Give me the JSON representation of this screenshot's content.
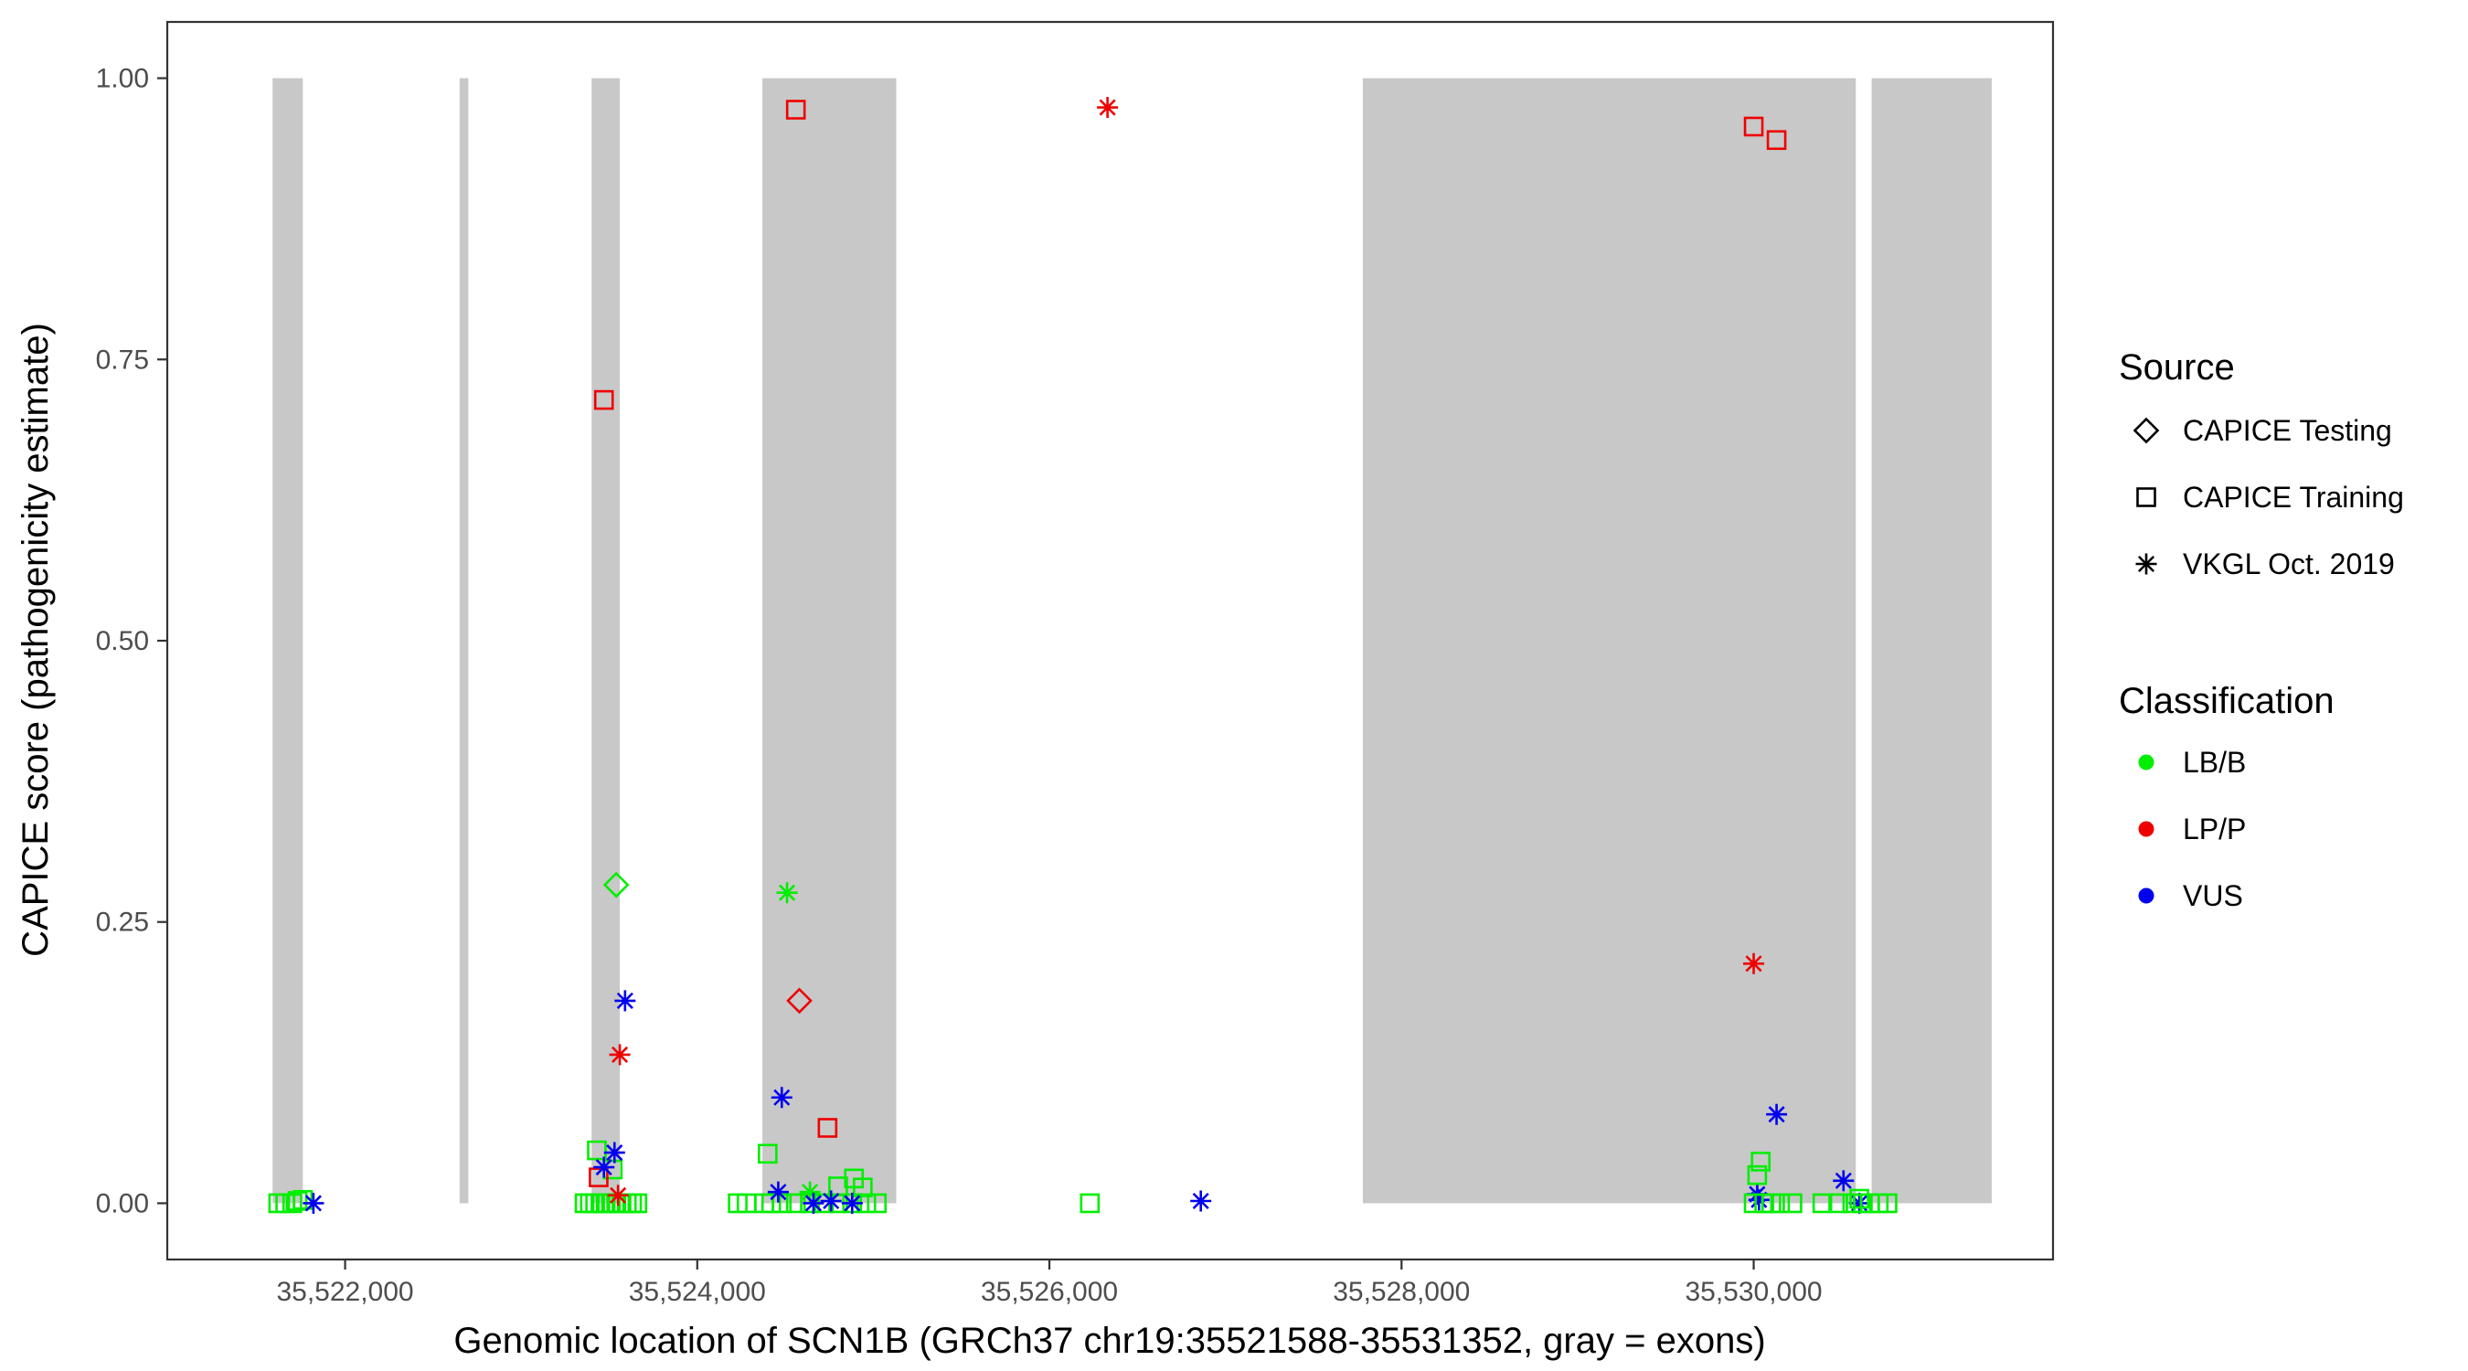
{
  "chart_data": {
    "type": "scatter",
    "xlabel": "Genomic location of SCN1B (GRCh37 chr19:35521588-35531352, gray = exons)",
    "ylabel": "CAPICE score (pathogenicity estimate)",
    "xlim": [
      35520990,
      35531700
    ],
    "ylim": [
      -0.05,
      1.05
    ],
    "x_ticks": [
      35522000,
      35524000,
      35526000,
      35528000,
      35530000
    ],
    "x_tick_labels": [
      "35,522,000",
      "35,524,000",
      "35,526,000",
      "35,528,000",
      "35,530,000"
    ],
    "y_ticks": [
      0,
      0.25,
      0.5,
      0.75,
      1.0
    ],
    "y_tick_labels": [
      "0.00",
      "0.25",
      "0.50",
      "0.75",
      "1.00"
    ],
    "grid": false,
    "exons": [
      [
        35521588,
        35521760
      ],
      [
        35522650,
        35522700
      ],
      [
        35523400,
        35523560
      ],
      [
        35524370,
        35525130
      ],
      [
        35527780,
        35530580
      ],
      [
        35530670,
        35531352
      ]
    ],
    "exon_color": "#c8c8c8",
    "legends": [
      {
        "title": "Source",
        "entries": [
          {
            "label": "CAPICE Testing",
            "shape": "diamond"
          },
          {
            "label": "CAPICE Training",
            "shape": "square"
          },
          {
            "label": "VKGL Oct. 2019",
            "shape": "asterisk"
          }
        ]
      },
      {
        "title": "Classification",
        "entries": [
          {
            "label": "LB/B",
            "color": "#00ee00"
          },
          {
            "label": "LP/P",
            "color": "#ee0000"
          },
          {
            "label": "VUS",
            "color": "#0000ee"
          }
        ]
      }
    ],
    "legend_position": "right",
    "colors": {
      "LB/B": "#00ee00",
      "LP/P": "#ee0000",
      "VUS": "#0000ee"
    },
    "points": [
      {
        "x": 35521620,
        "y": 0.0,
        "source": "CAPICE Training",
        "class": "LB/B"
      },
      {
        "x": 35521660,
        "y": 0.0,
        "source": "CAPICE Training",
        "class": "LB/B"
      },
      {
        "x": 35521700,
        "y": 0.0,
        "source": "CAPICE Training",
        "class": "LB/B"
      },
      {
        "x": 35521730,
        "y": 0.002,
        "source": "CAPICE Training",
        "class": "LB/B"
      },
      {
        "x": 35521760,
        "y": 0.003,
        "source": "CAPICE Training",
        "class": "LB/B"
      },
      {
        "x": 35521820,
        "y": 0.0,
        "source": "VKGL Oct. 2019",
        "class": "VUS"
      },
      {
        "x": 35523360,
        "y": 0.0,
        "source": "CAPICE Training",
        "class": "LB/B"
      },
      {
        "x": 35523390,
        "y": 0.0,
        "source": "CAPICE Training",
        "class": "LB/B"
      },
      {
        "x": 35523420,
        "y": 0.0,
        "source": "CAPICE Training",
        "class": "LB/B"
      },
      {
        "x": 35523450,
        "y": 0.0,
        "source": "CAPICE Training",
        "class": "LB/B"
      },
      {
        "x": 35523480,
        "y": 0.0,
        "source": "CAPICE Training",
        "class": "LB/B"
      },
      {
        "x": 35523510,
        "y": 0.0,
        "source": "CAPICE Training",
        "class": "LB/B"
      },
      {
        "x": 35523540,
        "y": 0.0,
        "source": "CAPICE Training",
        "class": "LB/B"
      },
      {
        "x": 35523570,
        "y": 0.0,
        "source": "CAPICE Training",
        "class": "LB/B"
      },
      {
        "x": 35523600,
        "y": 0.0,
        "source": "CAPICE Training",
        "class": "LB/B"
      },
      {
        "x": 35523630,
        "y": 0.0,
        "source": "CAPICE Training",
        "class": "LB/B"
      },
      {
        "x": 35523660,
        "y": 0.0,
        "source": "CAPICE Training",
        "class": "LB/B"
      },
      {
        "x": 35523430,
        "y": 0.047,
        "source": "CAPICE Training",
        "class": "LB/B"
      },
      {
        "x": 35523520,
        "y": 0.03,
        "source": "CAPICE Training",
        "class": "LB/B"
      },
      {
        "x": 35523470,
        "y": 0.714,
        "source": "CAPICE Training",
        "class": "LP/P"
      },
      {
        "x": 35523440,
        "y": 0.023,
        "source": "CAPICE Training",
        "class": "LP/P"
      },
      {
        "x": 35523540,
        "y": 0.283,
        "source": "CAPICE Testing",
        "class": "LB/B"
      },
      {
        "x": 35523590,
        "y": 0.18,
        "source": "VKGL Oct. 2019",
        "class": "VUS"
      },
      {
        "x": 35523560,
        "y": 0.132,
        "source": "VKGL Oct. 2019",
        "class": "LP/P"
      },
      {
        "x": 35523530,
        "y": 0.045,
        "source": "VKGL Oct. 2019",
        "class": "VUS"
      },
      {
        "x": 35523470,
        "y": 0.032,
        "source": "VKGL Oct. 2019",
        "class": "VUS"
      },
      {
        "x": 35523550,
        "y": 0.007,
        "source": "VKGL Oct. 2019",
        "class": "LP/P"
      },
      {
        "x": 35524230,
        "y": 0.0,
        "source": "CAPICE Training",
        "class": "LB/B"
      },
      {
        "x": 35524280,
        "y": 0.0,
        "source": "CAPICE Training",
        "class": "LB/B"
      },
      {
        "x": 35524380,
        "y": 0.0,
        "source": "CAPICE Training",
        "class": "LB/B"
      },
      {
        "x": 35524420,
        "y": 0.0,
        "source": "CAPICE Training",
        "class": "LB/B"
      },
      {
        "x": 35524480,
        "y": 0.0,
        "source": "CAPICE Training",
        "class": "LB/B"
      },
      {
        "x": 35524560,
        "y": 0.0,
        "source": "CAPICE Training",
        "class": "LB/B"
      },
      {
        "x": 35524640,
        "y": 0.0,
        "source": "CAPICE Training",
        "class": "LB/B"
      },
      {
        "x": 35524720,
        "y": 0.0,
        "source": "CAPICE Training",
        "class": "LB/B"
      },
      {
        "x": 35524800,
        "y": 0.0,
        "source": "CAPICE Training",
        "class": "LB/B"
      },
      {
        "x": 35524880,
        "y": 0.0,
        "source": "CAPICE Training",
        "class": "LB/B"
      },
      {
        "x": 35524960,
        "y": 0.0,
        "source": "CAPICE Training",
        "class": "LB/B"
      },
      {
        "x": 35525020,
        "y": 0.0,
        "source": "CAPICE Training",
        "class": "LB/B"
      },
      {
        "x": 35524400,
        "y": 0.044,
        "source": "CAPICE Training",
        "class": "LB/B"
      },
      {
        "x": 35524800,
        "y": 0.015,
        "source": "CAPICE Training",
        "class": "LB/B"
      },
      {
        "x": 35524890,
        "y": 0.022,
        "source": "CAPICE Training",
        "class": "LB/B"
      },
      {
        "x": 35524940,
        "y": 0.014,
        "source": "CAPICE Training",
        "class": "LB/B"
      },
      {
        "x": 35524560,
        "y": 0.972,
        "source": "CAPICE Training",
        "class": "LP/P"
      },
      {
        "x": 35524740,
        "y": 0.067,
        "source": "CAPICE Training",
        "class": "LP/P"
      },
      {
        "x": 35524580,
        "y": 0.18,
        "source": "CAPICE Testing",
        "class": "LP/P"
      },
      {
        "x": 35524510,
        "y": 0.276,
        "source": "VKGL Oct. 2019",
        "class": "LB/B"
      },
      {
        "x": 35524640,
        "y": 0.01,
        "source": "VKGL Oct. 2019",
        "class": "LB/B"
      },
      {
        "x": 35524480,
        "y": 0.094,
        "source": "VKGL Oct. 2019",
        "class": "VUS"
      },
      {
        "x": 35524460,
        "y": 0.01,
        "source": "VKGL Oct. 2019",
        "class": "VUS"
      },
      {
        "x": 35524660,
        "y": 0.0,
        "source": "VKGL Oct. 2019",
        "class": "VUS"
      },
      {
        "x": 35524760,
        "y": 0.002,
        "source": "VKGL Oct. 2019",
        "class": "VUS"
      },
      {
        "x": 35524880,
        "y": 0.0,
        "source": "VKGL Oct. 2019",
        "class": "VUS"
      },
      {
        "x": 35526230,
        "y": 0.0,
        "source": "CAPICE Training",
        "class": "LB/B"
      },
      {
        "x": 35526330,
        "y": 0.974,
        "source": "VKGL Oct. 2019",
        "class": "LP/P"
      },
      {
        "x": 35526860,
        "y": 0.002,
        "source": "VKGL Oct. 2019",
        "class": "VUS"
      },
      {
        "x": 35530000,
        "y": 0.957,
        "source": "CAPICE Training",
        "class": "LP/P"
      },
      {
        "x": 35530130,
        "y": 0.945,
        "source": "CAPICE Training",
        "class": "LP/P"
      },
      {
        "x": 35530000,
        "y": 0.213,
        "source": "VKGL Oct. 2019",
        "class": "LP/P"
      },
      {
        "x": 35530130,
        "y": 0.079,
        "source": "VKGL Oct. 2019",
        "class": "VUS"
      },
      {
        "x": 35530020,
        "y": 0.008,
        "source": "VKGL Oct. 2019",
        "class": "VUS"
      },
      {
        "x": 35530030,
        "y": 0.003,
        "source": "VKGL Oct. 2019",
        "class": "VUS"
      },
      {
        "x": 35530510,
        "y": 0.02,
        "source": "VKGL Oct. 2019",
        "class": "VUS"
      },
      {
        "x": 35530600,
        "y": 0.0,
        "source": "VKGL Oct. 2019",
        "class": "VUS"
      },
      {
        "x": 35530040,
        "y": 0.037,
        "source": "CAPICE Training",
        "class": "LB/B"
      },
      {
        "x": 35530020,
        "y": 0.025,
        "source": "CAPICE Training",
        "class": "LB/B"
      },
      {
        "x": 35530000,
        "y": 0.0,
        "source": "CAPICE Training",
        "class": "LB/B"
      },
      {
        "x": 35530060,
        "y": 0.0,
        "source": "CAPICE Training",
        "class": "LB/B"
      },
      {
        "x": 35530100,
        "y": 0.0,
        "source": "CAPICE Training",
        "class": "LB/B"
      },
      {
        "x": 35530150,
        "y": 0.0,
        "source": "CAPICE Training",
        "class": "LB/B"
      },
      {
        "x": 35530220,
        "y": 0.0,
        "source": "CAPICE Training",
        "class": "LB/B"
      },
      {
        "x": 35530390,
        "y": 0.0,
        "source": "CAPICE Training",
        "class": "LB/B"
      },
      {
        "x": 35530480,
        "y": 0.0,
        "source": "CAPICE Training",
        "class": "LB/B"
      },
      {
        "x": 35530560,
        "y": 0.0,
        "source": "CAPICE Training",
        "class": "LB/B"
      },
      {
        "x": 35530620,
        "y": 0.0,
        "source": "CAPICE Training",
        "class": "LB/B"
      },
      {
        "x": 35530660,
        "y": 0.0,
        "source": "CAPICE Training",
        "class": "LB/B"
      },
      {
        "x": 35530710,
        "y": 0.0,
        "source": "CAPICE Training",
        "class": "LB/B"
      },
      {
        "x": 35530760,
        "y": 0.0,
        "source": "CAPICE Training",
        "class": "LB/B"
      },
      {
        "x": 35530600,
        "y": 0.004,
        "source": "CAPICE Training",
        "class": "LB/B"
      }
    ]
  }
}
